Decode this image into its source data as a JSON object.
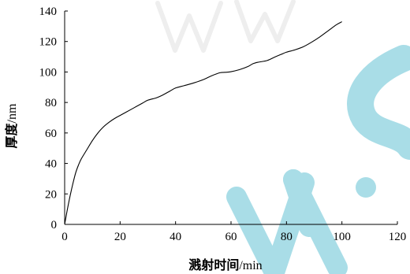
{
  "chart_data": {
    "type": "line",
    "title": "",
    "xlabel_cn": "溅射时间",
    "xlabel_unit": "/min",
    "ylabel_cn": "厚度",
    "ylabel_unit": "/nm",
    "xlim": [
      0,
      120
    ],
    "ylim": [
      0,
      140
    ],
    "xticks": [
      "0",
      "20",
      "40",
      "60",
      "80",
      "100",
      "120"
    ],
    "yticks": [
      "0",
      "20",
      "40",
      "60",
      "80",
      "100",
      "120",
      "140"
    ],
    "grid": false,
    "legend": "none",
    "series": [
      {
        "color": "#000000",
        "x": [
          0,
          1,
          2,
          3,
          4,
          5,
          6,
          8,
          10,
          12,
          14,
          16,
          18,
          20,
          22,
          25,
          28,
          30,
          33,
          35,
          38,
          40,
          43,
          46,
          50,
          53,
          56,
          58,
          60,
          63,
          66,
          68,
          70,
          73,
          76,
          78,
          80,
          83,
          86,
          89,
          92,
          95,
          98,
          100
        ],
        "y": [
          0,
          10,
          19,
          27,
          34,
          39,
          43,
          49,
          55,
          60,
          64,
          67,
          69.5,
          71.5,
          73.5,
          76.5,
          79.5,
          81.5,
          83,
          84.5,
          87.5,
          89.5,
          91,
          92.5,
          95,
          97.5,
          99.5,
          99.8,
          100.2,
          101.5,
          103.5,
          105.5,
          106.5,
          107.5,
          110,
          111.5,
          113,
          114.5,
          116.5,
          119.5,
          123,
          127,
          131,
          133
        ]
      }
    ]
  },
  "watermark": {
    "color": "#a9dde7"
  }
}
